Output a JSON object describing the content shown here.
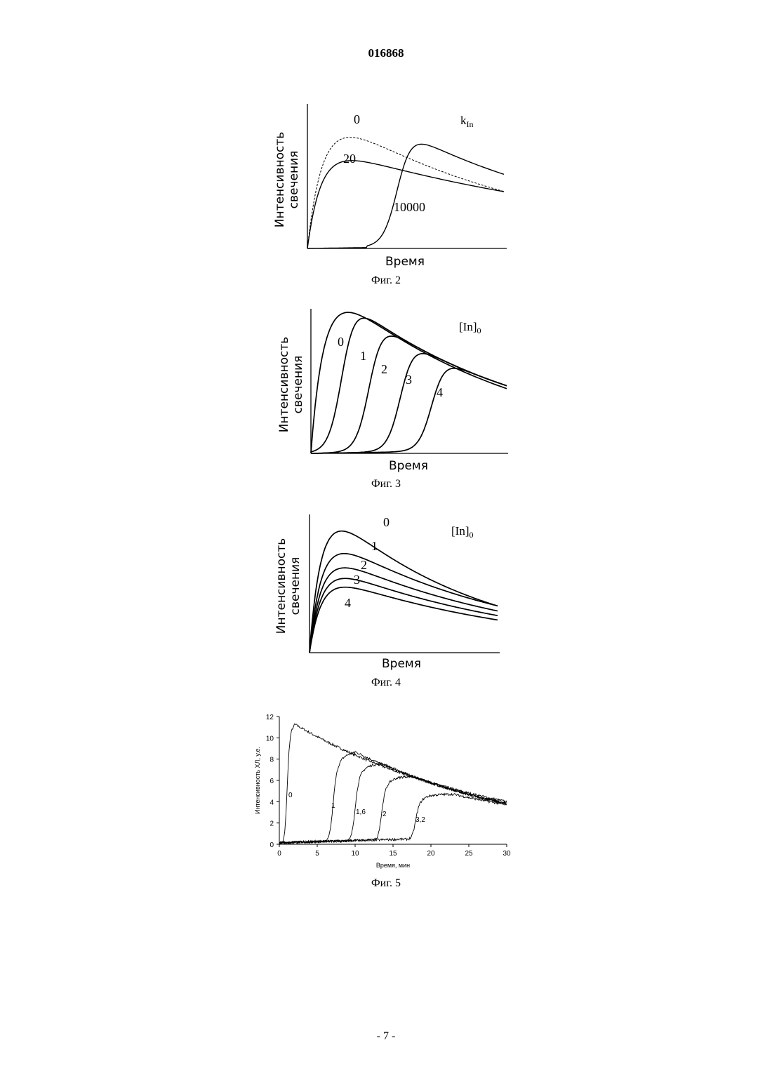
{
  "document": {
    "header_number": "016868",
    "footer": "- 7 -"
  },
  "chart_data": [
    {
      "type": "line",
      "caption": "Фиг. 2",
      "xlabel": "Время",
      "ylabel_line1": "Интенсивность",
      "ylabel_line2": "свечения",
      "legend_title_main": "k",
      "legend_title_sub": "In",
      "series": [
        {
          "name": "0",
          "style": "dashed"
        },
        {
          "name": "20",
          "style": "solid"
        },
        {
          "name": "10000",
          "style": "solid"
        }
      ]
    },
    {
      "type": "line",
      "caption": "Фиг. 3",
      "xlabel": "Время",
      "ylabel_line1": "Интенсивность",
      "ylabel_line2": "свечения",
      "legend_title_main": "[In]",
      "legend_title_sub": "0",
      "series": [
        {
          "name": "0"
        },
        {
          "name": "1"
        },
        {
          "name": "2"
        },
        {
          "name": "3"
        },
        {
          "name": "4"
        }
      ]
    },
    {
      "type": "line",
      "caption": "Фиг. 4",
      "xlabel": "Время",
      "ylabel_line1": "Интенсивность",
      "ylabel_line2": "свечения",
      "legend_title_main": "[In]",
      "legend_title_sub": "0",
      "series": [
        {
          "name": "0"
        },
        {
          "name": "1"
        },
        {
          "name": "2"
        },
        {
          "name": "3"
        },
        {
          "name": "4"
        }
      ]
    },
    {
      "type": "line",
      "caption": "Фиг. 5",
      "xlabel": "Время, мин",
      "ylabel": "Интенсивность ХЛ, у.е.",
      "xlim": [
        0,
        30
      ],
      "ylim": [
        0,
        12
      ],
      "x_ticks": [
        0,
        5,
        10,
        15,
        20,
        25,
        30
      ],
      "y_ticks": [
        0,
        2,
        4,
        6,
        8,
        10,
        12
      ],
      "series": [
        {
          "name": "0",
          "lag_min": 1.0,
          "peak_x": 2.0,
          "peak_y": 11.2,
          "end_y": 3.9
        },
        {
          "name": "1",
          "lag_min": 6.6,
          "peak_x": 10.0,
          "peak_y": 8.7,
          "end_y": 3.8
        },
        {
          "name": "1,6",
          "lag_min": 9.5,
          "peak_x": 13.5,
          "peak_y": 7.6,
          "end_y": 3.8
        },
        {
          "name": "2",
          "lag_min": 13.0,
          "peak_x": 17.5,
          "peak_y": 6.4,
          "end_y": 3.8
        },
        {
          "name": "3,2",
          "lag_min": 17.5,
          "peak_x": 23.0,
          "peak_y": 4.7,
          "end_y": 3.7
        }
      ]
    }
  ]
}
